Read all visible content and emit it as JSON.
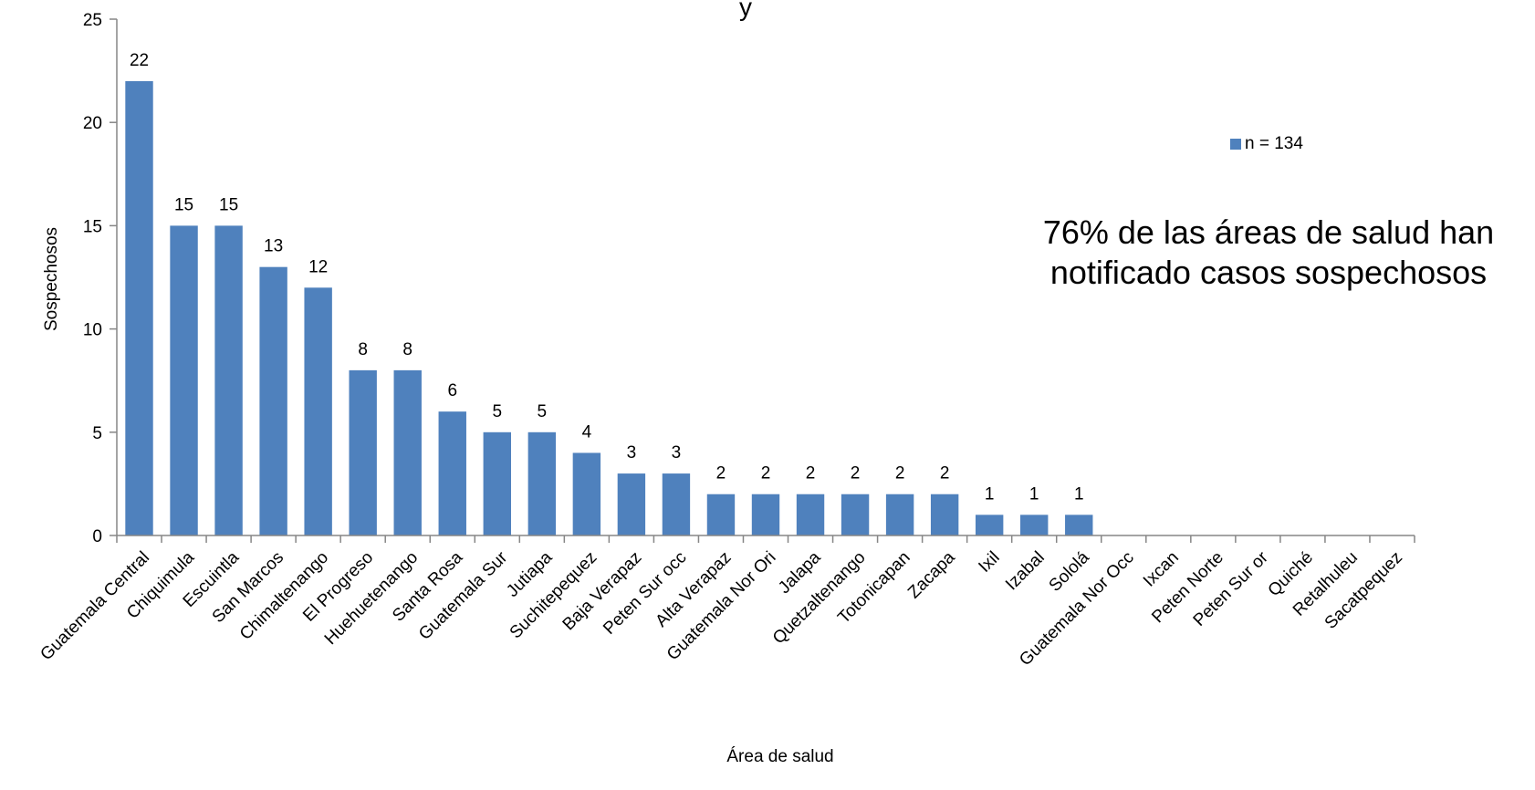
{
  "title_fragment": "y",
  "chart_data": {
    "type": "bar",
    "xlabel": "Área de salud",
    "ylabel": "Sospechosos",
    "ylim": [
      0,
      25
    ],
    "yticks": [
      0,
      5,
      10,
      15,
      20,
      25
    ],
    "categories": [
      "Guatemala Central",
      "Chiquimula",
      "Escuintla",
      "San Marcos",
      "Chimaltenango",
      "El Progreso",
      "Huehuetenango",
      "Santa Rosa",
      "Guatemala Sur",
      "Jutiapa",
      "Suchitepequez",
      "Baja Verapaz",
      "Peten Sur occ",
      "Alta Verapaz",
      "Guatemala Nor Ori",
      "Jalapa",
      "Quetzaltenango",
      "Totonicapan",
      "Zacapa",
      "Ixil",
      "Izabal",
      "Sololá",
      "Guatemala Nor Occ",
      "Ixcan",
      "Peten Norte",
      "Peten Sur or",
      "Quiché",
      "Retalhuleu",
      "Sacatpequez"
    ],
    "series": [
      {
        "name": "n = 134",
        "color": "#4F81BD",
        "values": [
          22,
          15,
          15,
          13,
          12,
          8,
          8,
          6,
          5,
          5,
          4,
          3,
          3,
          2,
          2,
          2,
          2,
          2,
          2,
          1,
          1,
          1,
          0,
          0,
          0,
          0,
          0,
          0,
          0
        ],
        "data_labels": [
          "22",
          "15",
          "15",
          "13",
          "12",
          "8",
          "8",
          "6",
          "5",
          "5",
          "4",
          "3",
          "3",
          "2",
          "2",
          "2",
          "2",
          "2",
          "2",
          "1",
          "1",
          "1"
        ]
      }
    ],
    "legend_position": "right",
    "grid": false,
    "annotation": "76% de las áreas de salud han notificado casos sospechosos"
  }
}
